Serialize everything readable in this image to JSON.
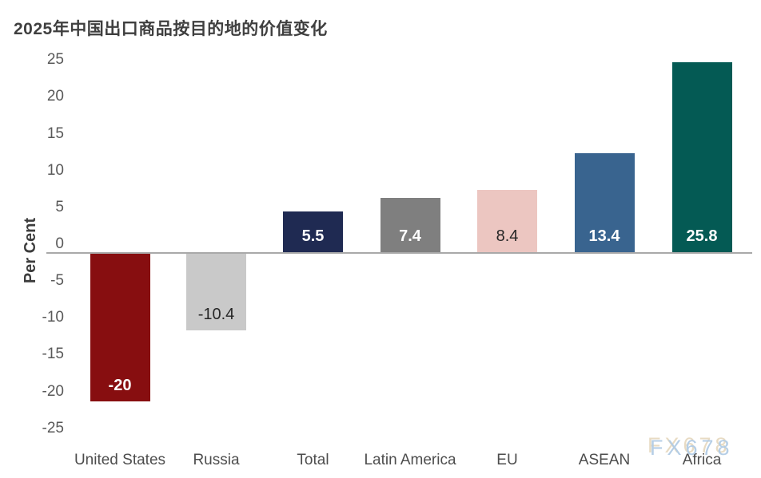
{
  "chart_data": {
    "type": "bar",
    "title": "2025年中国出口商品按目的地的价值变化",
    "xlabel": "",
    "ylabel": "Per Cent",
    "ylim": [
      -25,
      25
    ],
    "ytick_step": 5,
    "yticks": [
      25,
      20,
      15,
      10,
      5,
      0,
      -5,
      -10,
      -15,
      -20,
      -25
    ],
    "categories": [
      "United States",
      "Russia",
      "Total",
      "Latin America",
      "EU",
      "ASEAN",
      "Africa"
    ],
    "values": [
      -20,
      -10.4,
      5.5,
      7.4,
      8.4,
      13.4,
      25.8
    ],
    "value_labels": [
      "-20",
      "-10.4",
      "5.5",
      "7.4",
      "8.4",
      "13.4",
      "25.8"
    ],
    "bar_colors": [
      "#870e10",
      "#c9c9c9",
      "#1f2a52",
      "#7f7f7f",
      "#ecc6c1",
      "#39648f",
      "#045a54"
    ],
    "value_label_styles": [
      "light",
      "dark",
      "light",
      "light",
      "dark",
      "light",
      "light"
    ],
    "axis_line_color": "#a9a9a9",
    "grid": false,
    "legend": "none"
  },
  "watermark": {
    "text": "FX678",
    "color": "#b1cbe5",
    "shadow_color": "#e4d5b8"
  }
}
